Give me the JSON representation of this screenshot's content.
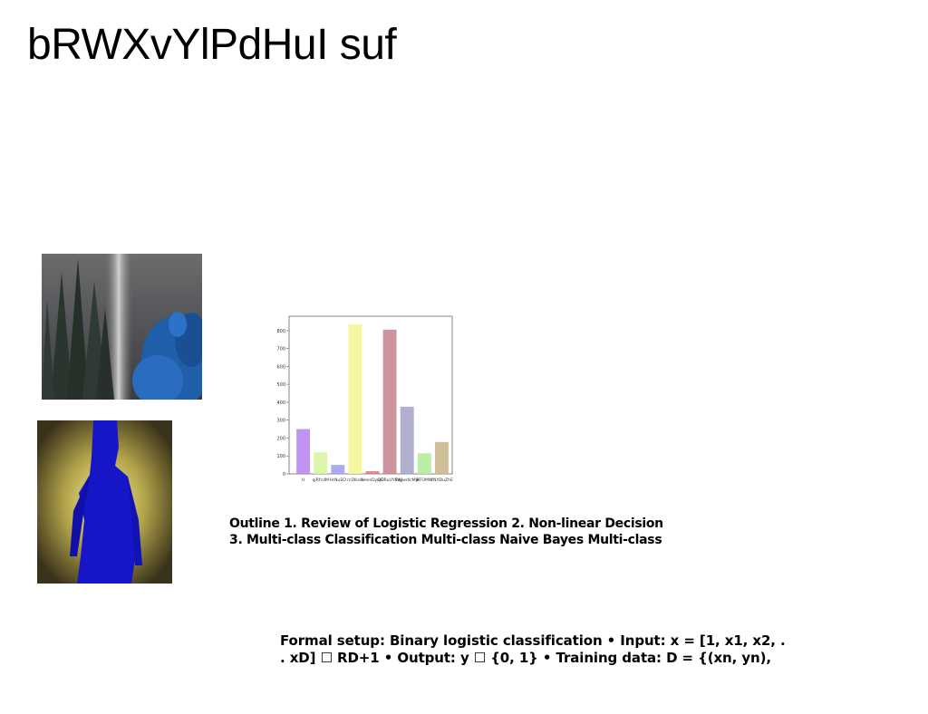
{
  "slide": {
    "title": "bRWXvYlPdHuI suf",
    "outline_lines": [
      "Outline 1. Review of Logistic Regression 2. Non-linear Decision",
      "3. Multi-class Classification Multi-class Naive Bayes Multi-class"
    ],
    "setup_lines": [
      "Formal setup: Binary logistic classification • Input: x = [1, x1, x2, .",
      ". xD] ☐ RD+1 • Output: y ☐ {0, 1} • Training data: D = {(xn, yn),"
    ]
  },
  "images": {
    "forest": {
      "description_icon": "forest-waterfall-photo"
    },
    "figure": {
      "description_icon": "blue-figure-photo"
    }
  },
  "chart_data": {
    "type": "bar",
    "categories": [
      "U",
      "qjRfcdM",
      "HrNuSO",
      "rcDlkdo",
      "NeesDyOG",
      "ajDRuUYFWj",
      "ddywdlcMjb",
      "BTOMW",
      "VNXDuZhE"
    ],
    "values": [
      250,
      120,
      50,
      835,
      15,
      805,
      375,
      115,
      178
    ],
    "colors": [
      "#b98af0",
      "#d8f5a0",
      "#a3a3ee",
      "#f7f597",
      "#e97a7a",
      "#c98894",
      "#a9a6c9",
      "#b5eb9b",
      "#cbb88e"
    ],
    "yticks": [
      0,
      100,
      200,
      300,
      400,
      500,
      600,
      700,
      800
    ],
    "ylim": [
      0,
      880
    ],
    "grid": false
  }
}
